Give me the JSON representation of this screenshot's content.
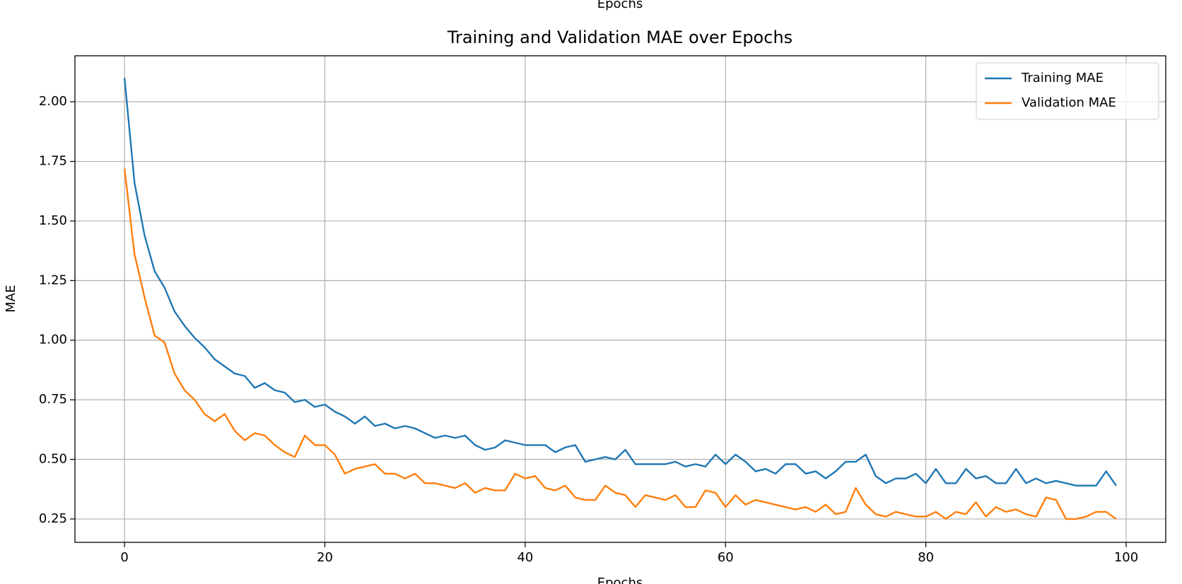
{
  "header_fragment": "Epochs",
  "chart_data": {
    "type": "line",
    "title": "Training and Validation MAE over Epochs",
    "xlabel": "Epochs",
    "ylabel": "MAE",
    "x": [
      0,
      1,
      2,
      3,
      4,
      5,
      6,
      7,
      8,
      9,
      10,
      11,
      12,
      13,
      14,
      15,
      16,
      17,
      18,
      19,
      20,
      21,
      22,
      23,
      24,
      25,
      26,
      27,
      28,
      29,
      30,
      31,
      32,
      33,
      34,
      35,
      36,
      37,
      38,
      39,
      40,
      41,
      42,
      43,
      44,
      45,
      46,
      47,
      48,
      49,
      50,
      51,
      52,
      53,
      54,
      55,
      56,
      57,
      58,
      59,
      60,
      61,
      62,
      63,
      64,
      65,
      66,
      67,
      68,
      69,
      70,
      71,
      72,
      73,
      74,
      75,
      76,
      77,
      78,
      79,
      80,
      81,
      82,
      83,
      84,
      85,
      86,
      87,
      88,
      89,
      90,
      91,
      92,
      93,
      94,
      95,
      96,
      97,
      98,
      99
    ],
    "series": [
      {
        "name": "Training MAE",
        "color": "#1f77b4",
        "values": [
          2.1,
          1.66,
          1.44,
          1.29,
          1.22,
          1.12,
          1.06,
          1.01,
          0.97,
          0.92,
          0.89,
          0.86,
          0.85,
          0.8,
          0.82,
          0.79,
          0.78,
          0.74,
          0.75,
          0.72,
          0.73,
          0.7,
          0.68,
          0.65,
          0.68,
          0.64,
          0.65,
          0.63,
          0.64,
          0.63,
          0.61,
          0.59,
          0.6,
          0.59,
          0.6,
          0.56,
          0.54,
          0.55,
          0.58,
          0.57,
          0.56,
          0.56,
          0.56,
          0.53,
          0.55,
          0.56,
          0.49,
          0.5,
          0.51,
          0.5,
          0.54,
          0.48,
          0.48,
          0.48,
          0.48,
          0.49,
          0.47,
          0.48,
          0.47,
          0.52,
          0.48,
          0.52,
          0.49,
          0.45,
          0.46,
          0.44,
          0.48,
          0.48,
          0.44,
          0.45,
          0.42,
          0.45,
          0.49,
          0.49,
          0.52,
          0.43,
          0.4,
          0.42,
          0.42,
          0.44,
          0.4,
          0.46,
          0.4,
          0.4,
          0.46,
          0.42,
          0.43,
          0.4,
          0.4,
          0.46,
          0.4,
          0.42,
          0.4,
          0.41,
          0.4,
          0.39,
          0.39,
          0.39,
          0.45,
          0.39
        ]
      },
      {
        "name": "Validation MAE",
        "color": "#ff7f0e",
        "values": [
          1.72,
          1.36,
          1.18,
          1.02,
          0.99,
          0.86,
          0.79,
          0.75,
          0.69,
          0.66,
          0.69,
          0.62,
          0.58,
          0.61,
          0.6,
          0.56,
          0.53,
          0.51,
          0.6,
          0.56,
          0.56,
          0.52,
          0.44,
          0.46,
          0.47,
          0.48,
          0.44,
          0.44,
          0.42,
          0.44,
          0.4,
          0.4,
          0.39,
          0.38,
          0.4,
          0.36,
          0.38,
          0.37,
          0.37,
          0.44,
          0.42,
          0.43,
          0.38,
          0.37,
          0.39,
          0.34,
          0.33,
          0.33,
          0.39,
          0.36,
          0.35,
          0.3,
          0.35,
          0.34,
          0.33,
          0.35,
          0.3,
          0.3,
          0.37,
          0.36,
          0.3,
          0.35,
          0.31,
          0.33,
          0.32,
          0.31,
          0.3,
          0.29,
          0.3,
          0.28,
          0.31,
          0.27,
          0.28,
          0.38,
          0.31,
          0.27,
          0.26,
          0.28,
          0.27,
          0.26,
          0.26,
          0.28,
          0.25,
          0.28,
          0.27,
          0.32,
          0.26,
          0.3,
          0.28,
          0.29,
          0.27,
          0.26,
          0.34,
          0.33,
          0.25,
          0.25,
          0.26,
          0.28,
          0.28,
          0.25
        ]
      }
    ],
    "xlim": [
      -4.95,
      103.95
    ],
    "ylim": [
      0.152,
      2.193
    ],
    "xticks": [
      0,
      20,
      40,
      60,
      80,
      100
    ],
    "yticks": [
      {
        "value": 0.25,
        "label": "0.25"
      },
      {
        "value": 0.5,
        "label": "0.50"
      },
      {
        "value": 0.75,
        "label": "0.75"
      },
      {
        "value": 1,
        "label": "1.00"
      },
      {
        "value": 1.25,
        "label": "1.25"
      },
      {
        "value": 1.5,
        "label": "1.50"
      },
      {
        "value": 1.75,
        "label": "1.75"
      },
      {
        "value": 2,
        "label": "2.00"
      }
    ],
    "grid": true,
    "legend": "upper right"
  }
}
